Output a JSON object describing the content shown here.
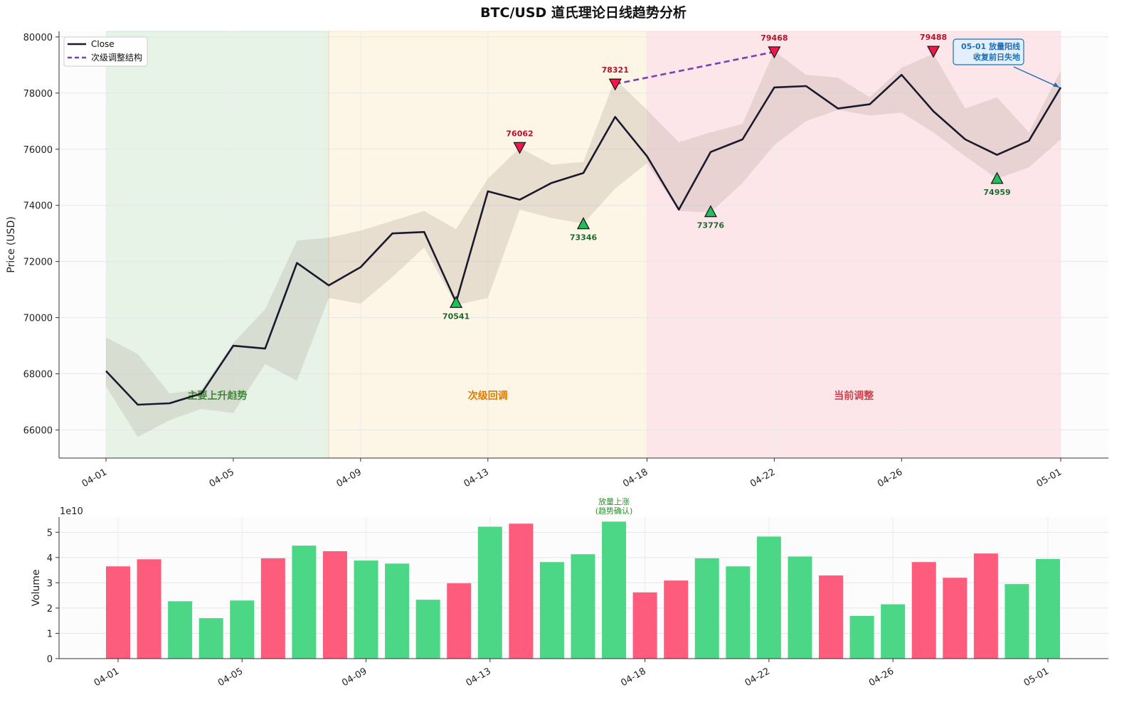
{
  "chart_data": [
    {
      "type": "line",
      "title": "BTC/USD 道氏理论日线趋势分析",
      "ylabel": "Price (USD)",
      "ylim": [
        65000,
        80200
      ],
      "yticks": [
        66000,
        68000,
        70000,
        72000,
        74000,
        76000,
        78000,
        80000
      ],
      "x": [
        "04-01",
        "04-02",
        "04-03",
        "04-04",
        "04-05",
        "04-06",
        "04-07",
        "04-08",
        "04-09",
        "04-10",
        "04-11",
        "04-12",
        "04-13",
        "04-14",
        "04-15",
        "04-16",
        "04-17",
        "04-18",
        "04-19",
        "04-20",
        "04-21",
        "04-22",
        "04-23",
        "04-24",
        "04-25",
        "04-26",
        "04-27",
        "04-28",
        "04-29",
        "04-30",
        "05-01"
      ],
      "xtick_labels": [
        "04-01",
        "04-05",
        "04-09",
        "04-13",
        "04-18",
        "04-22",
        "04-26",
        "05-01"
      ],
      "series": [
        {
          "name": "Close",
          "color": "#1a1a2e",
          "values": [
            68100,
            66900,
            66950,
            67300,
            69000,
            68900,
            71950,
            71150,
            71800,
            73000,
            73050,
            70550,
            74500,
            74200,
            74800,
            75150,
            77150,
            75750,
            73850,
            75900,
            76350,
            78200,
            78250,
            77450,
            77600,
            78650,
            77350,
            76350,
            75800,
            76300,
            78200
          ]
        },
        {
          "name": "次级调整结构",
          "color": "#7b3fb0",
          "style": "dashed",
          "points": [
            [
              "04-17",
              78321
            ],
            [
              "04-22",
              79468
            ]
          ]
        }
      ],
      "band": {
        "color": "#8b7b6b",
        "upper": [
          69300,
          68700,
          67300,
          67450,
          69100,
          70300,
          72750,
          72850,
          73100,
          73450,
          73800,
          73150,
          74950,
          76050,
          75450,
          75550,
          78500,
          77400,
          76250,
          76600,
          76900,
          79500,
          78650,
          78550,
          77850,
          78900,
          79400,
          77450,
          77850,
          76600,
          78800
        ],
        "lower": [
          67550,
          65750,
          66350,
          66750,
          66600,
          68350,
          67750,
          70700,
          70500,
          71450,
          72500,
          70450,
          70700,
          73850,
          73550,
          73350,
          74600,
          75500,
          73800,
          73750,
          74800,
          76150,
          77000,
          77400,
          77200,
          77300,
          76600,
          75750,
          74950,
          75350,
          76350
        ]
      },
      "phases": [
        {
          "label": "主要上升趋势",
          "from": "04-01",
          "to": "04-08",
          "color": "#e8f3e8",
          "text_color": "#2e8b2e"
        },
        {
          "label": "次级回调",
          "from": "04-08",
          "to": "04-18",
          "color": "#fdf5e6",
          "text_color": "#e07b00"
        },
        {
          "label": "当前调整",
          "from": "04-18",
          "to": "05-01",
          "color": "#fde6ea",
          "text_color": "#d0404a"
        }
      ],
      "highs": [
        {
          "x": "04-14",
          "value": 76062,
          "label": "76062"
        },
        {
          "x": "04-17",
          "value": 78321,
          "label": "78321"
        },
        {
          "x": "04-22",
          "value": 79468,
          "label": "79468"
        },
        {
          "x": "04-27",
          "value": 79488,
          "label": "79488"
        }
      ],
      "lows": [
        {
          "x": "04-12",
          "value": 70541,
          "label": "70541"
        },
        {
          "x": "04-16",
          "value": 73346,
          "label": "73346"
        },
        {
          "x": "04-20",
          "value": 73776,
          "label": "73776"
        },
        {
          "x": "04-29",
          "value": 74959,
          "label": "74959"
        }
      ],
      "annotation": {
        "line1": "05-01 放量阳线",
        "line2": "收复前日失地",
        "target_x": "05-01",
        "target_value": 78200
      },
      "legend": {
        "placement": "top-left",
        "entries": [
          "Close",
          "次级调整结构"
        ]
      },
      "grid": true
    },
    {
      "type": "bar",
      "ylabel": "Volume",
      "scale_label": "1e10",
      "ylim": [
        0,
        5.6
      ],
      "yticks": [
        0,
        1,
        2,
        3,
        4,
        5
      ],
      "categories": [
        "04-01",
        "04-02",
        "04-03",
        "04-04",
        "04-05",
        "04-06",
        "04-07",
        "04-08",
        "04-09",
        "04-10",
        "04-11",
        "04-12",
        "04-13",
        "04-14",
        "04-15",
        "04-16",
        "04-17",
        "04-18",
        "04-19",
        "04-20",
        "04-21",
        "04-22",
        "04-23",
        "04-24",
        "04-25",
        "04-26",
        "04-27",
        "04-28",
        "04-29",
        "04-30",
        "05-01"
      ],
      "xtick_labels": [
        "04-01",
        "04-05",
        "04-09",
        "04-13",
        "04-18",
        "04-22",
        "04-26",
        "05-01"
      ],
      "values": [
        3.65,
        3.93,
        2.27,
        1.6,
        2.3,
        3.97,
        4.47,
        4.25,
        3.88,
        3.76,
        2.33,
        2.98,
        5.22,
        5.34,
        3.82,
        4.13,
        5.42,
        2.62,
        3.09,
        3.97,
        3.65,
        4.83,
        4.04,
        3.29,
        1.69,
        2.15,
        3.82,
        3.2,
        4.16,
        2.95,
        3.94
      ],
      "bar_colors": [
        "r",
        "r",
        "g",
        "g",
        "g",
        "r",
        "g",
        "r",
        "g",
        "g",
        "g",
        "r",
        "g",
        "r",
        "g",
        "g",
        "g",
        "r",
        "r",
        "g",
        "g",
        "g",
        "g",
        "r",
        "g",
        "g",
        "r",
        "r",
        "r",
        "g",
        "g"
      ],
      "colors": {
        "up": "#4cd787",
        "down": "#fd5c7c"
      },
      "note": {
        "line1": "放量上涨",
        "line2": "(趋势确认)",
        "x": "04-17"
      },
      "grid": true
    }
  ]
}
